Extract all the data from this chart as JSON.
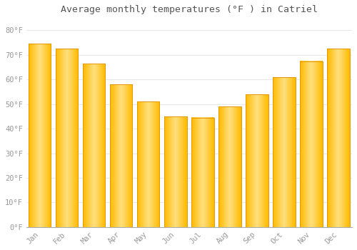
{
  "title": "Average monthly temperatures (°F ) in Catriel",
  "months": [
    "Jan",
    "Feb",
    "Mar",
    "Apr",
    "May",
    "Jun",
    "Jul",
    "Aug",
    "Sep",
    "Oct",
    "Nov",
    "Dec"
  ],
  "values": [
    74.5,
    72.5,
    66.5,
    58,
    51,
    45,
    44.5,
    49,
    54,
    61,
    67.5,
    72.5
  ],
  "bar_color_face": "#FFBB00",
  "bar_color_light": "#FFE080",
  "bar_color_edge": "#E8960A",
  "background_color": "#FFFFFF",
  "grid_color": "#E8E8E8",
  "text_color": "#999999",
  "title_color": "#555555",
  "ylim": [
    0,
    85
  ],
  "yticks": [
    0,
    10,
    20,
    30,
    40,
    50,
    60,
    70,
    80
  ],
  "ytick_labels": [
    "0°F",
    "10°F",
    "20°F",
    "30°F",
    "40°F",
    "50°F",
    "60°F",
    "70°F",
    "80°F"
  ],
  "bar_width": 0.82
}
